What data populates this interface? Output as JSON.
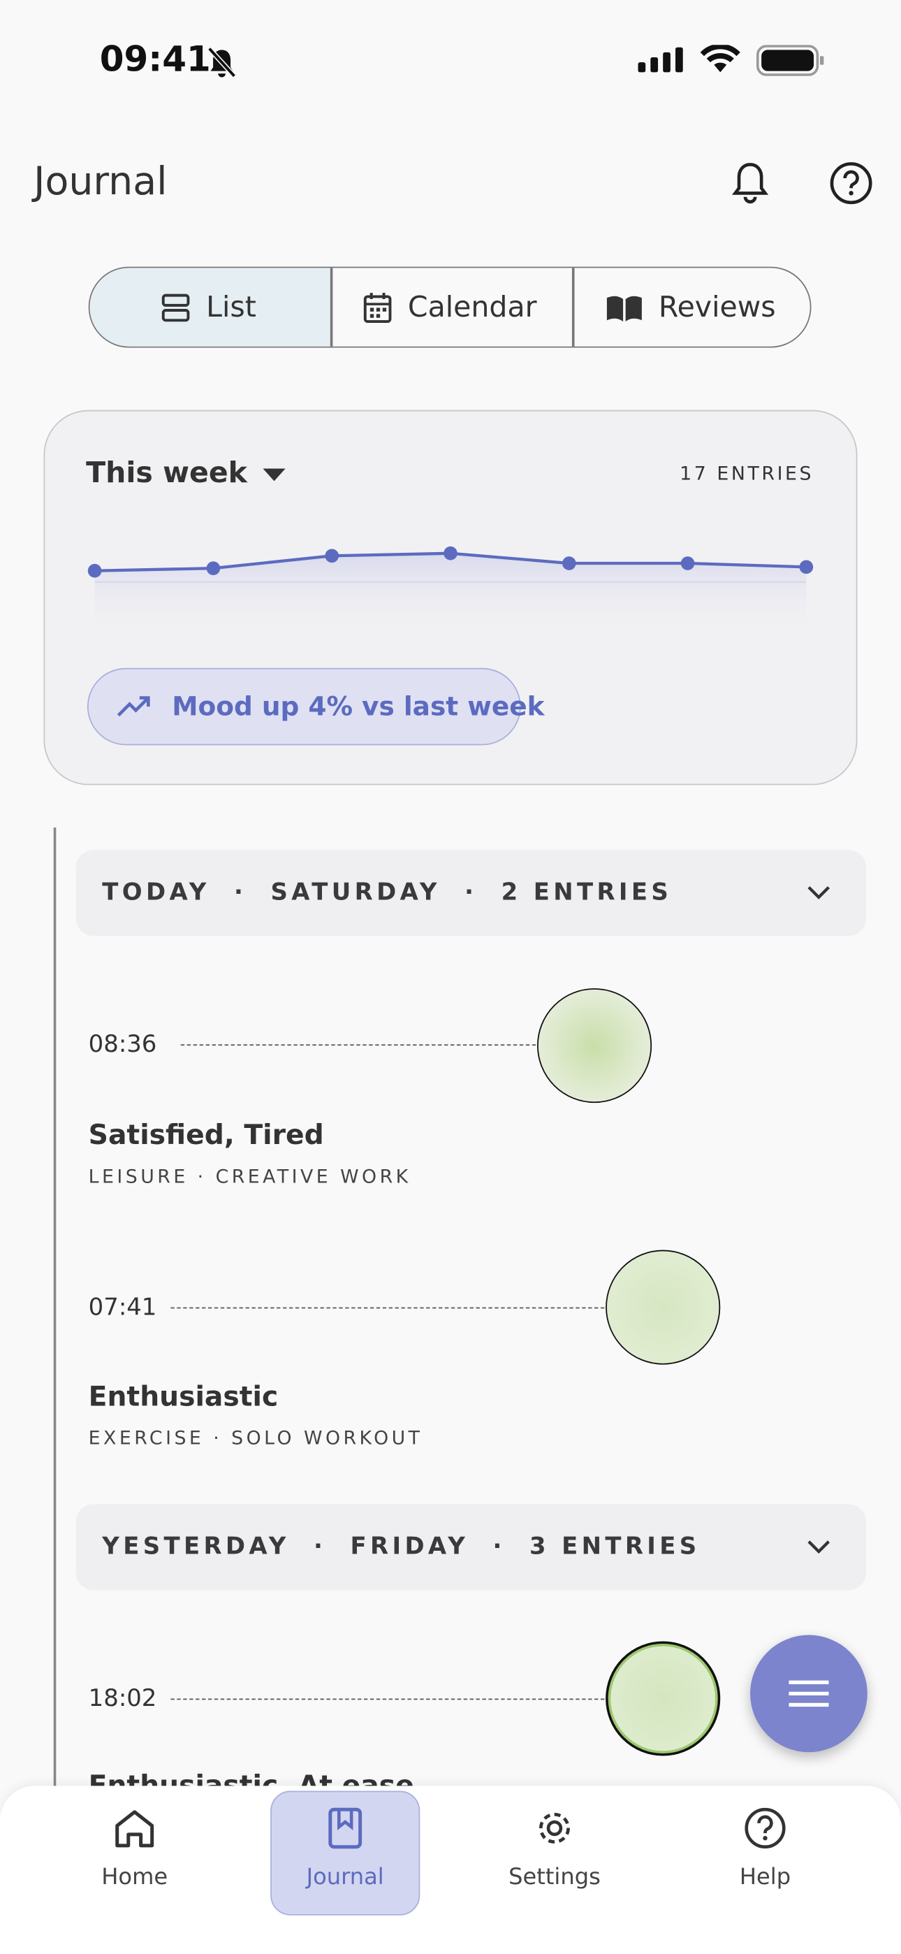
{
  "status_bar": {
    "time": "09:41"
  },
  "header": {
    "title": "Journal"
  },
  "tabs": [
    "List",
    "Calendar",
    "Reviews"
  ],
  "summary": {
    "period": "This week",
    "entries": "17 ENTRIES",
    "trend": {
      "values": [
        9,
        11,
        21,
        23,
        15,
        15,
        12
      ],
      "color": "#5c6bc0"
    },
    "badge": "Mood up 4% vs last week"
  },
  "days": [
    {
      "header": "TODAY  ·  SATURDAY  ·  2 ENTRIES",
      "entries": [
        {
          "time": "08:36",
          "mood": "Satisfied, Tired",
          "tags": "LEISURE · CREATIVE WORK"
        },
        {
          "time": "07:41",
          "mood": "Enthusiastic",
          "tags": "EXERCISE · SOLO WORKOUT"
        }
      ]
    },
    {
      "header": "YESTERDAY  ·  FRIDAY  ·  3 ENTRIES",
      "entries": [
        {
          "time": "18:02",
          "mood": "Enthusiastic, At ease"
        }
      ]
    }
  ],
  "nav": [
    "Home",
    "Journal",
    "Settings",
    "Help"
  ]
}
